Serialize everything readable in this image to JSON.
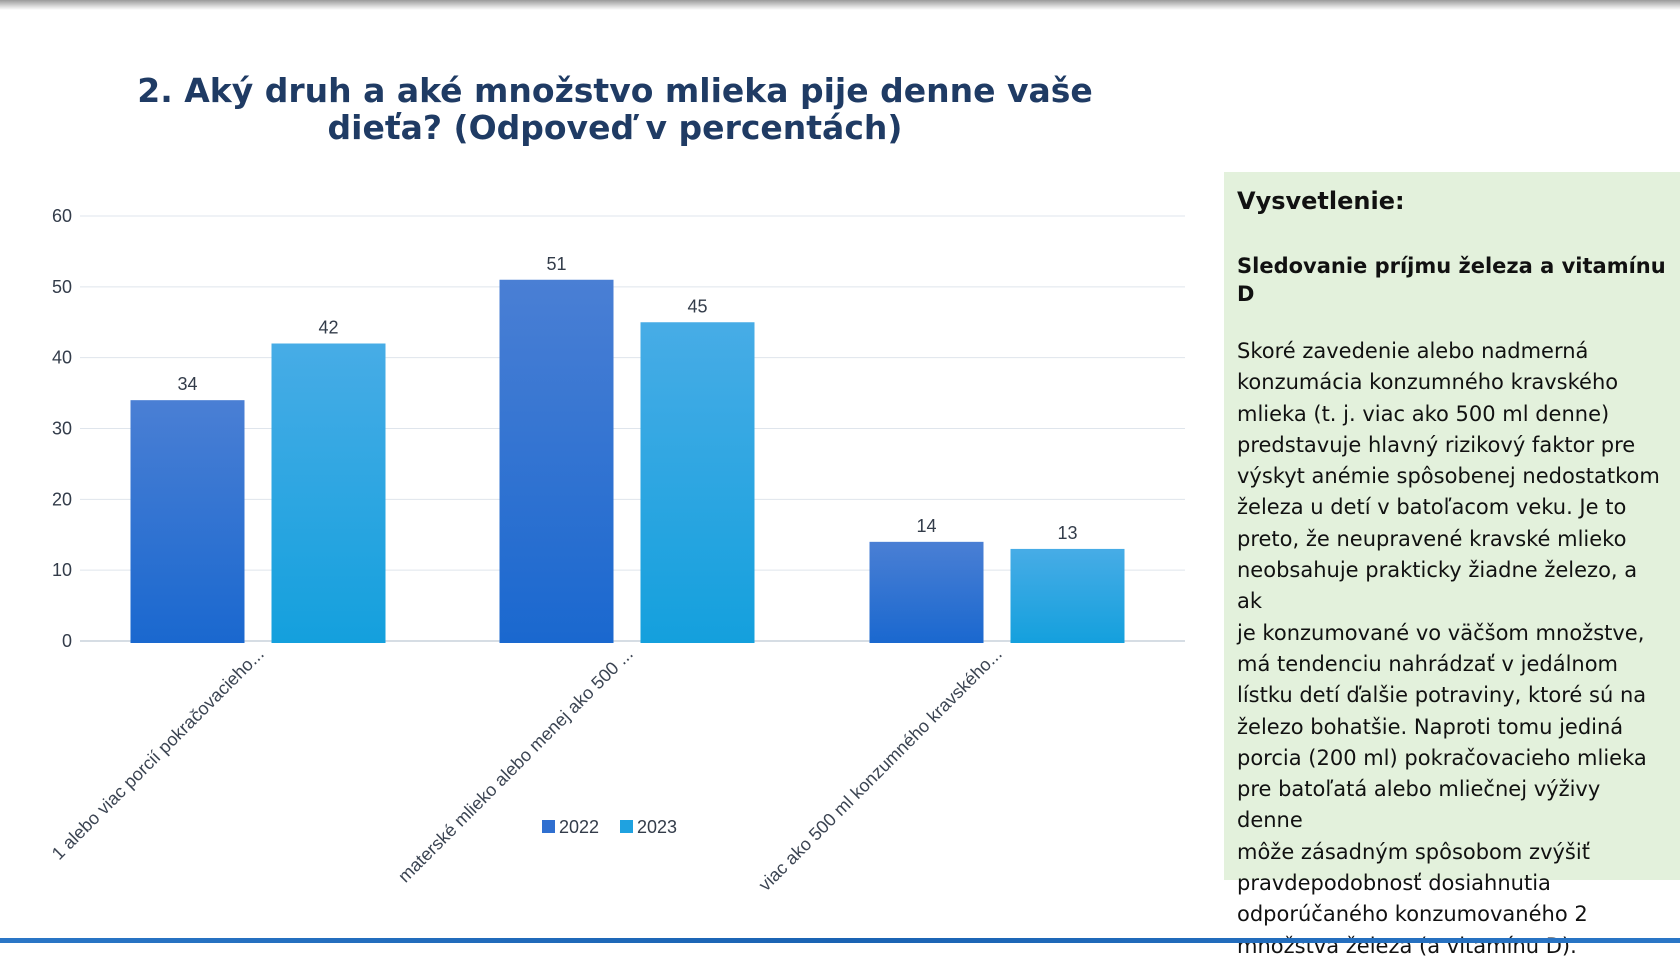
{
  "slide": {
    "title": "2. Aký druh a aké množstvo mlieka pije denne vaše dieťa? (Odpoveď v percentách)"
  },
  "chart_data": {
    "type": "bar",
    "categories": [
      "1 alebo viac porcií pokračovacieho...",
      "materské mlieko alebo menej ako 500 ...",
      "viac ako 500 ml konzumného kravského..."
    ],
    "series": [
      {
        "name": "2022",
        "values": [
          34,
          51,
          14
        ],
        "color": "#2f6fd0"
      },
      {
        "name": "2023",
        "values": [
          42,
          45,
          13
        ],
        "color": "#1fa2e0"
      }
    ],
    "ylim": [
      0,
      60
    ],
    "yticks": [
      0,
      10,
      20,
      30,
      40,
      50,
      60
    ],
    "grid": true,
    "legend_position": "bottom"
  },
  "note": {
    "heading": "Vysvetlenie:",
    "subheading": "Sledovanie príjmu železa a vitamínu D",
    "lines": [
      "Skoré zavedenie alebo nadmerná",
      "konzumácia konzumného kravského",
      "mlieka (t. j. viac ako 500 ml denne)",
      "predstavuje hlavný rizikový faktor pre",
      "výskyt anémie spôsobenej nedostatkom",
      "železa u detí v batoľacom veku. Je to",
      "preto, že neupravené kravské mlieko",
      "neobsahuje prakticky žiadne železo, a ak",
      "je konzumované vo väčšom množstve,",
      "má tendenciu nahrádzať v jedálnom",
      "lístku detí ďalšie potraviny, ktoré sú na",
      "železo bohatšie. Naproti tomu jediná",
      "porcia (200 ml) pokračovacieho mlieka",
      "pre batoľatá alebo mliečnej výživy denne",
      "môže zásadným spôsobom zvýšiť",
      "pravdepodobnosť dosiahnutia",
      "odporúčaného konzumovaného 2",
      "množstva železa (a vitamínu D)."
    ]
  }
}
